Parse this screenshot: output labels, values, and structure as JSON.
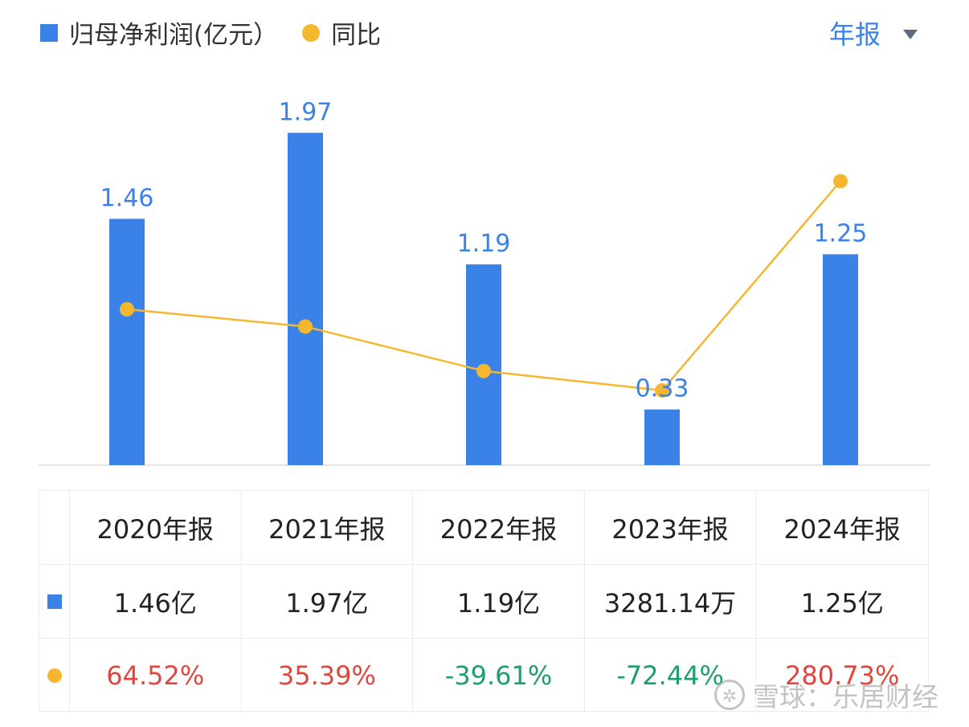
{
  "legend": {
    "bar_label": "归母净利润(亿元）",
    "line_label": "同比"
  },
  "period_selector": {
    "label": "年报"
  },
  "colors": {
    "bar": "#3b82e8",
    "line": "#f5b730",
    "positive": "#e0463e",
    "negative": "#1e9e6a"
  },
  "chart_data": {
    "type": "bar",
    "categories": [
      "2020年报",
      "2021年报",
      "2022年报",
      "2023年报",
      "2024年报"
    ],
    "series": [
      {
        "name": "归母净利润(亿元）",
        "type": "bar",
        "values": [
          1.46,
          1.97,
          1.19,
          0.33,
          1.25
        ],
        "labels": [
          "1.46",
          "1.97",
          "1.19",
          "0.33",
          "1.25"
        ]
      },
      {
        "name": "同比",
        "type": "line",
        "values": [
          64.52,
          35.39,
          -39.61,
          -72.44,
          280.73
        ]
      }
    ]
  },
  "table": {
    "headers": [
      "2020年报",
      "2021年报",
      "2022年报",
      "2023年报",
      "2024年报"
    ],
    "profit_row": [
      "1.46亿",
      "1.97亿",
      "1.19亿",
      "3281.14万",
      "1.25亿"
    ],
    "yoy_row": [
      "64.52%",
      "35.39%",
      "-39.61%",
      "-72.44%",
      "280.73%"
    ]
  },
  "watermark": {
    "text": "雪球：乐居财经"
  }
}
